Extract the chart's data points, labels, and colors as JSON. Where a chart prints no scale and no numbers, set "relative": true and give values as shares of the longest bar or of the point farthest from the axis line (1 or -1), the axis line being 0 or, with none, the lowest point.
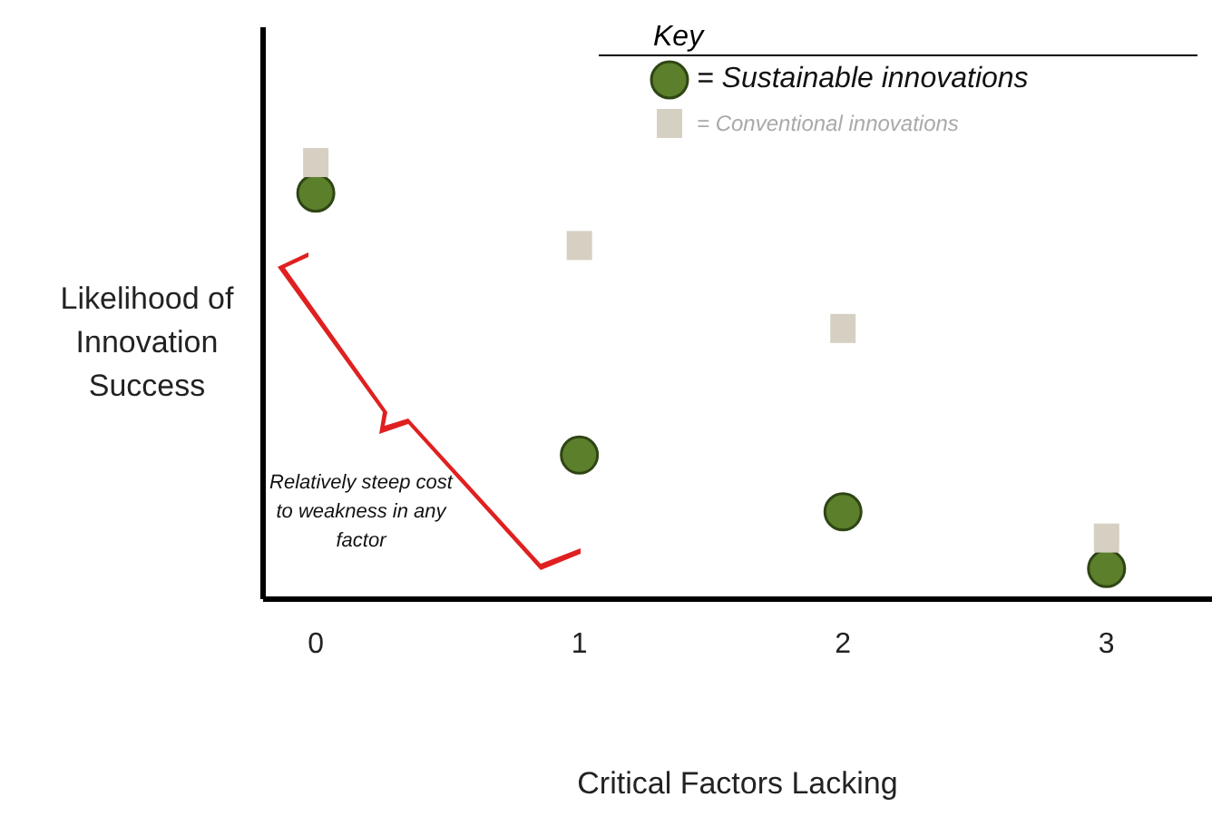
{
  "chart_data": {
    "type": "scatter",
    "relative": true,
    "xlabel": "Critical Factors Lacking",
    "ylabel": "Likelihood of Innovation Success",
    "legend_title": "Key",
    "legend": "top right",
    "xlim": [
      -0.2,
      3.4
    ],
    "xticks": [
      0,
      1,
      2,
      3
    ],
    "grid": false,
    "annotations": [
      "Relatively steep cost to weakness in any factor"
    ],
    "series": [
      {
        "name": "= Sustainable innovations",
        "color": "#5b7f2b",
        "marker": "circle",
        "x": [
          0,
          1,
          2,
          3
        ],
        "values": [
          0.93,
          0.33,
          0.2,
          0.07
        ]
      },
      {
        "name": "= Conventional innovations",
        "color": "#d5d0c2",
        "marker": "square",
        "x": [
          0,
          1,
          2,
          3
        ],
        "values": [
          1,
          0.81,
          0.62,
          0.14
        ]
      }
    ]
  }
}
